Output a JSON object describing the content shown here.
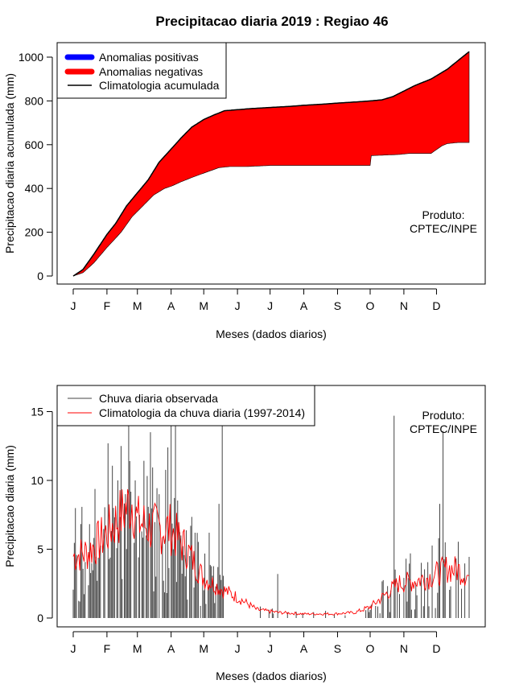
{
  "title": "Precipitacao diaria 2019 : Regiao 46",
  "product": "Produto:",
  "product_org": "CPTEC/INPE",
  "month_labels": [
    "J",
    "F",
    "M",
    "A",
    "M",
    "J",
    "J",
    "A",
    "S",
    "O",
    "N",
    "D"
  ],
  "chart_data": [
    {
      "type": "area",
      "title": "Precipitacao diaria 2019 : Regiao 46",
      "xlabel": "Meses (dados diarios)",
      "ylabel": "Precipitacao diaria acumulada (mm)",
      "xlim": [
        1,
        365
      ],
      "ylim": [
        0,
        1030
      ],
      "yticks": [
        0,
        200,
        400,
        600,
        800,
        1000
      ],
      "legend": [
        "Anomalias positivas",
        "Anomalias negativas",
        "Climatologia acumulada"
      ],
      "colors": {
        "positive": "#0000ff",
        "negative": "#ff0000",
        "climatology": "#000000"
      },
      "climatology_cumulative": {
        "x": [
          1,
          10,
          20,
          32,
          40,
          50,
          60,
          70,
          80,
          91,
          100,
          110,
          121,
          130,
          140,
          152,
          165,
          182,
          200,
          213,
          230,
          244,
          260,
          274,
          285,
          295,
          305,
          315,
          330,
          345,
          355,
          365
        ],
        "y": [
          0,
          30,
          100,
          190,
          240,
          320,
          380,
          440,
          520,
          580,
          630,
          680,
          715,
          735,
          755,
          760,
          765,
          770,
          775,
          780,
          785,
          790,
          795,
          800,
          805,
          820,
          845,
          870,
          900,
          945,
          985,
          1025
        ]
      },
      "observed_cumulative": {
        "x": [
          1,
          10,
          20,
          32,
          45,
          55,
          65,
          75,
          85,
          91,
          100,
          110,
          121,
          135,
          145,
          150,
          160,
          182,
          200,
          213,
          230,
          244,
          274,
          275,
          300,
          310,
          330,
          340,
          345,
          355,
          365
        ],
        "y": [
          0,
          15,
          60,
          130,
          200,
          270,
          320,
          370,
          400,
          410,
          430,
          450,
          470,
          495,
          500,
          500,
          500,
          505,
          505,
          505,
          505,
          505,
          505,
          550,
          555,
          560,
          560,
          595,
          605,
          610,
          610
        ]
      }
    },
    {
      "type": "bar+line",
      "xlabel": "Meses (dados diarios)",
      "ylabel": "Precipitacao diaria (mm)",
      "xlim": [
        1,
        365
      ],
      "ylim": [
        0,
        16
      ],
      "yticks": [
        0,
        5,
        10,
        15
      ],
      "legend": [
        "Chuva diaria observada",
        "Climatologia da chuva diaria (1997-2014)"
      ],
      "colors": {
        "observed": "#444444",
        "climatology": "#ff0000"
      },
      "observed_peaks": {
        "x": [
          33,
          38,
          45,
          49,
          53,
          58,
          62,
          68,
          72,
          80,
          88,
          91,
          93,
          95,
          100,
          108,
          113,
          126,
          135,
          138,
          189,
          296,
          338,
          341,
          343
        ],
        "y": [
          12.7,
          8,
          12.5,
          9,
          11.4,
          10,
          7.5,
          6,
          13.5,
          9,
          12.4,
          14,
          5,
          14.5,
          6,
          4.5,
          6.2,
          6.2,
          8.3,
          14.6,
          3.2,
          14.7,
          8.3,
          13.6,
          5.5
        ]
      },
      "climatology_daily": {
        "x": [
          1,
          15,
          30,
          45,
          55,
          60,
          75,
          90,
          105,
          120,
          135,
          152,
          170,
          190,
          213,
          240,
          260,
          274,
          285,
          300,
          315,
          330,
          345,
          355,
          365
        ],
        "y": [
          4.5,
          4.8,
          6.0,
          7.5,
          8.5,
          7.0,
          6.5,
          6.5,
          5.0,
          3.0,
          2.2,
          1.5,
          0.6,
          0.4,
          0.3,
          0.3,
          0.4,
          0.8,
          1.5,
          2.5,
          2.7,
          3.0,
          3.6,
          3.5,
          3.0
        ]
      }
    }
  ]
}
